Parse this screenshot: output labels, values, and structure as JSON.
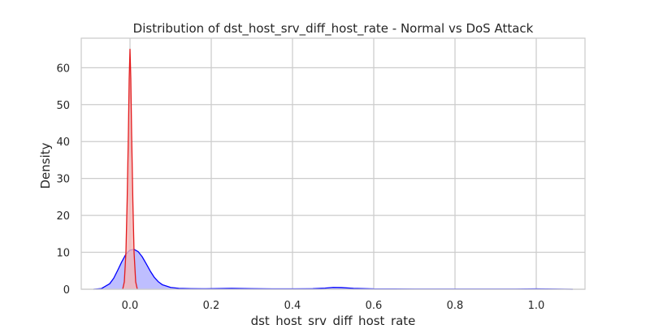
{
  "chart_data": {
    "type": "area",
    "title": "Distribution of dst_host_srv_diff_host_rate - Normal vs DoS Attack",
    "xlabel": "dst_host_srv_diff_host_rate",
    "ylabel": "Density",
    "xlim": [
      -0.12,
      1.12
    ],
    "ylim": [
      0,
      68
    ],
    "x_ticks": [
      0.0,
      0.2,
      0.4,
      0.6,
      0.8,
      1.0
    ],
    "x_tick_labels": [
      "0.0",
      "0.2",
      "0.4",
      "0.6",
      "0.8",
      "1.0"
    ],
    "y_ticks": [
      0,
      10,
      20,
      30,
      40,
      50,
      60
    ],
    "y_tick_labels": [
      "0",
      "10",
      "20",
      "30",
      "40",
      "50",
      "60"
    ],
    "grid": true,
    "series": [
      {
        "color": "#0000ff",
        "fill": "#b3b3ff",
        "x": [
          -0.09,
          -0.07,
          -0.05,
          -0.04,
          -0.03,
          -0.02,
          -0.01,
          0.0,
          0.01,
          0.02,
          0.03,
          0.04,
          0.05,
          0.06,
          0.07,
          0.08,
          0.1,
          0.12,
          0.15,
          0.18,
          0.22,
          0.25,
          0.3,
          0.35,
          0.4,
          0.45,
          0.48,
          0.5,
          0.52,
          0.55,
          0.6,
          0.7,
          0.8,
          0.9,
          0.95,
          1.0,
          1.05,
          1.09
        ],
        "y": [
          0.0,
          0.2,
          1.5,
          3.0,
          5.2,
          7.5,
          9.5,
          10.6,
          10.8,
          10.2,
          8.8,
          6.9,
          4.9,
          3.2,
          2.0,
          1.2,
          0.5,
          0.25,
          0.15,
          0.12,
          0.2,
          0.25,
          0.15,
          0.1,
          0.1,
          0.15,
          0.3,
          0.5,
          0.45,
          0.25,
          0.1,
          0.05,
          0.05,
          0.05,
          0.05,
          0.1,
          0.05,
          0.0
        ]
      },
      {
        "color": "#e41a1c",
        "fill": "#f4b6b6",
        "x": [
          -0.018,
          -0.014,
          -0.01,
          -0.007,
          -0.004,
          -0.002,
          0.0,
          0.002,
          0.004,
          0.007,
          0.01,
          0.014,
          0.018
        ],
        "y": [
          0.0,
          2.0,
          10.0,
          24.0,
          42.0,
          57.0,
          65.0,
          57.0,
          42.0,
          24.0,
          10.0,
          2.0,
          0.0
        ]
      }
    ]
  }
}
